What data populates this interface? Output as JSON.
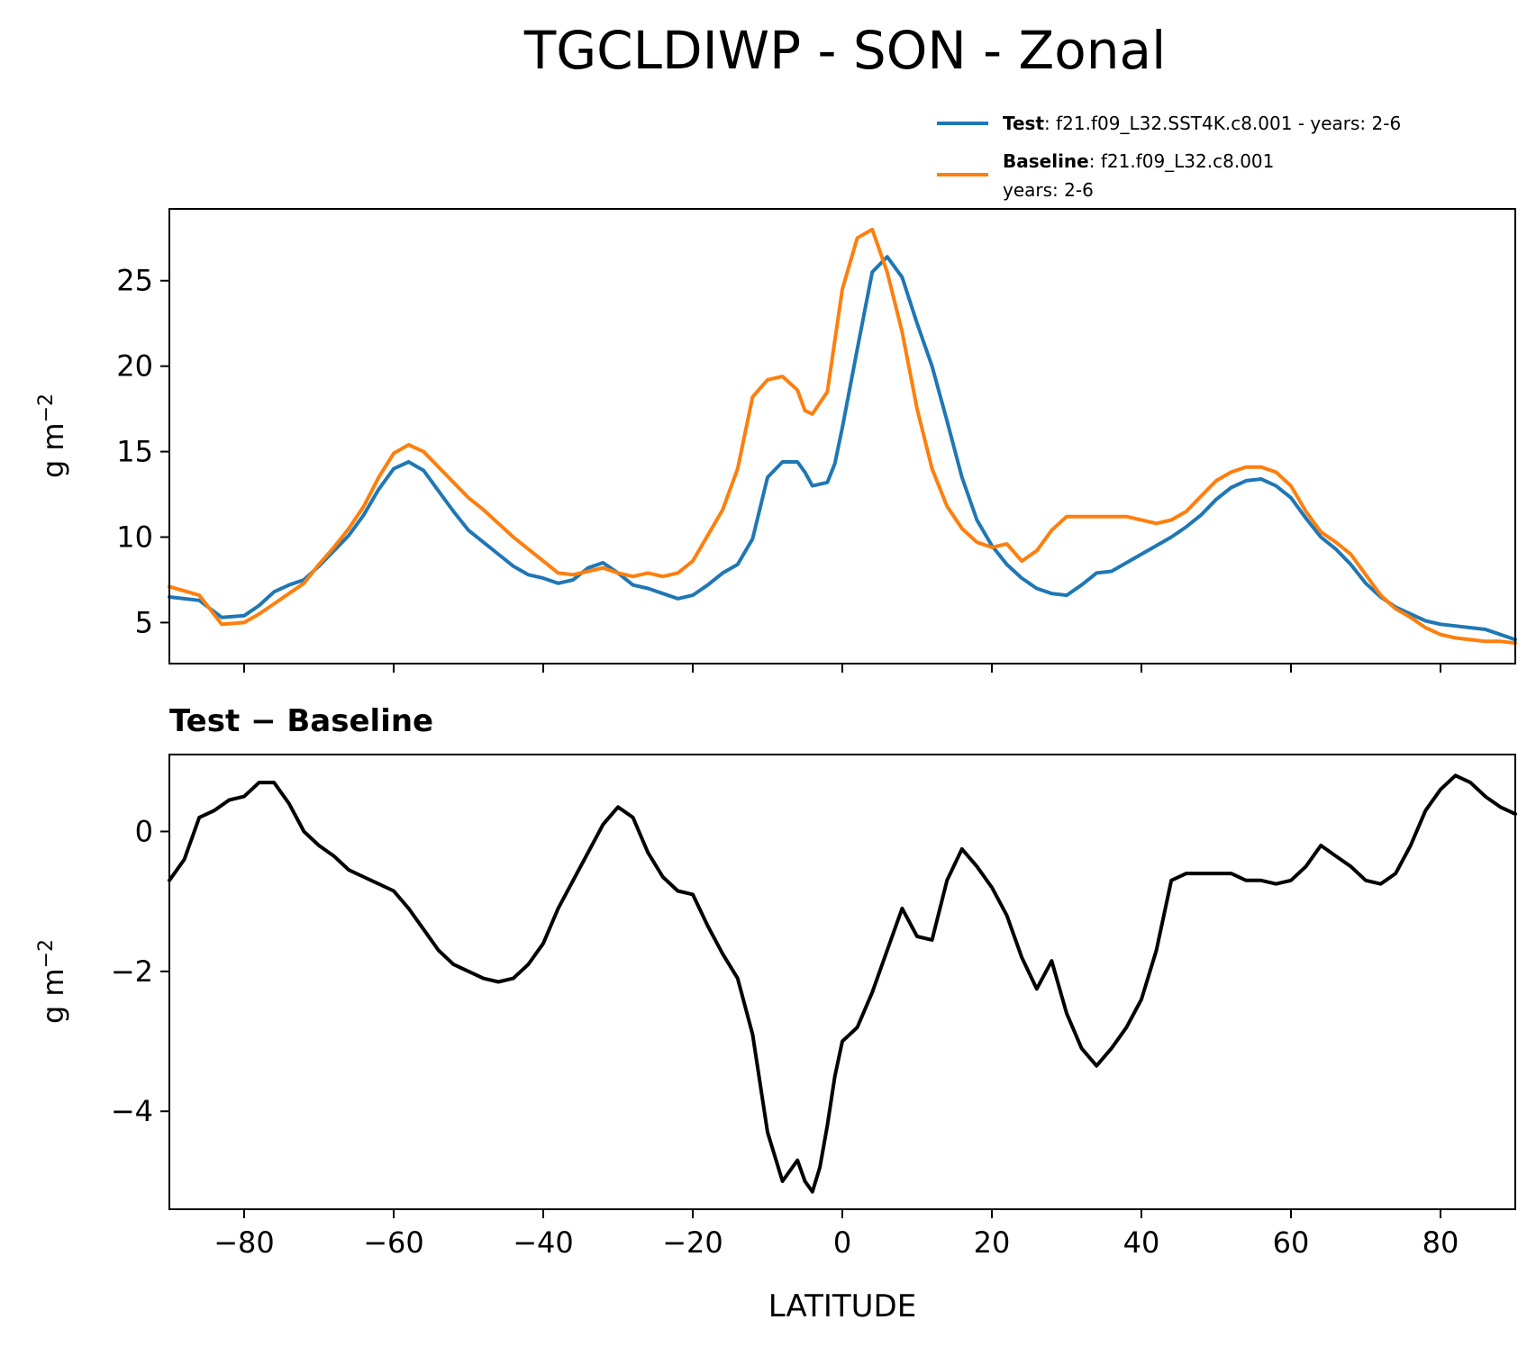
{
  "chart_data": [
    {
      "type": "line",
      "title": "TGCLDIWP - SON - Zonal",
      "xlabel": "",
      "ylabel": "g m",
      "ylabel_sup": "−2",
      "xlim": [
        -90,
        90
      ],
      "ylim": [
        2.6,
        29.2
      ],
      "yticks": [
        5,
        10,
        15,
        20,
        25
      ],
      "yticklabels": [
        "5",
        "10",
        "15",
        "20",
        "25"
      ],
      "xticks": [
        -80,
        -60,
        -40,
        -20,
        0,
        20,
        40,
        60,
        80
      ],
      "legend": {
        "position": "top-right, above plot",
        "entries": [
          {
            "key": "Test",
            "label": ": f21.f09_L32.SST4K.c8.001 - years: 2-6",
            "color": "#1f77b4"
          },
          {
            "key": "Baseline",
            "label": ": f21.f09_L32.c8.001",
            "label2": "years: 2-6",
            "color": "#ff7f0e"
          }
        ]
      },
      "series": [
        {
          "name": "Test",
          "color": "#1f77b4",
          "x": [
            -90,
            -86,
            -83,
            -80,
            -78,
            -76,
            -74,
            -72,
            -70,
            -68,
            -66,
            -64,
            -62,
            -60,
            -58,
            -56,
            -54,
            -52,
            -50,
            -48,
            -46,
            -44,
            -42,
            -40,
            -38,
            -36,
            -34,
            -32,
            -30,
            -28,
            -26,
            -24,
            -22,
            -20,
            -18,
            -16,
            -14,
            -12,
            -10,
            -8,
            -6,
            -5,
            -4,
            -2,
            -1,
            0,
            2,
            4,
            6,
            8,
            10,
            12,
            14,
            16,
            18,
            20,
            22,
            24,
            26,
            28,
            30,
            32,
            34,
            36,
            38,
            40,
            42,
            44,
            46,
            48,
            50,
            52,
            54,
            56,
            58,
            60,
            62,
            64,
            66,
            68,
            70,
            72,
            74,
            76,
            78,
            80,
            82,
            84,
            86,
            88,
            90
          ],
          "y": [
            6.5,
            6.3,
            5.3,
            5.4,
            6.0,
            6.8,
            7.2,
            7.5,
            8.3,
            9.2,
            10.1,
            11.3,
            12.8,
            14.0,
            14.4,
            13.9,
            12.7,
            11.5,
            10.4,
            9.7,
            9.0,
            8.3,
            7.8,
            7.6,
            7.3,
            7.5,
            8.2,
            8.5,
            7.9,
            7.2,
            7.0,
            6.7,
            6.4,
            6.6,
            7.2,
            7.9,
            8.4,
            9.9,
            13.5,
            14.4,
            14.4,
            13.8,
            13.0,
            13.2,
            14.3,
            16.4,
            21.0,
            25.5,
            26.4,
            25.2,
            22.5,
            20.0,
            16.8,
            13.5,
            11.0,
            9.5,
            8.4,
            7.6,
            7.0,
            6.7,
            6.6,
            7.2,
            7.9,
            8.0,
            8.5,
            9.0,
            9.5,
            10.0,
            10.6,
            11.3,
            12.2,
            12.9,
            13.3,
            13.4,
            13.0,
            12.3,
            11.1,
            10.0,
            9.3,
            8.4,
            7.3,
            6.5,
            5.9,
            5.5,
            5.1,
            4.9,
            4.8,
            4.7,
            4.6,
            4.3,
            4.0
          ]
        },
        {
          "name": "Baseline",
          "color": "#ff7f0e",
          "x": [
            -90,
            -86,
            -83,
            -80,
            -78,
            -76,
            -74,
            -72,
            -70,
            -68,
            -66,
            -64,
            -62,
            -60,
            -58,
            -56,
            -54,
            -52,
            -50,
            -48,
            -46,
            -44,
            -42,
            -40,
            -38,
            -36,
            -34,
            -32,
            -30,
            -28,
            -26,
            -24,
            -22,
            -20,
            -18,
            -16,
            -14,
            -12,
            -10,
            -8,
            -6,
            -5,
            -4,
            -2,
            -1,
            0,
            2,
            4,
            6,
            8,
            10,
            12,
            14,
            16,
            18,
            20,
            22,
            24,
            26,
            28,
            30,
            32,
            34,
            36,
            38,
            40,
            42,
            44,
            46,
            48,
            50,
            52,
            54,
            56,
            58,
            60,
            62,
            64,
            66,
            68,
            70,
            72,
            74,
            76,
            78,
            80,
            82,
            84,
            86,
            88,
            90
          ],
          "y": [
            7.1,
            6.6,
            4.9,
            5.0,
            5.5,
            6.1,
            6.7,
            7.3,
            8.4,
            9.4,
            10.5,
            11.8,
            13.5,
            14.9,
            15.4,
            15.0,
            14.1,
            13.2,
            12.3,
            11.6,
            10.8,
            10.0,
            9.3,
            8.6,
            7.9,
            7.8,
            8.0,
            8.2,
            7.9,
            7.7,
            7.9,
            7.7,
            7.9,
            8.6,
            10.1,
            11.6,
            14.0,
            18.2,
            19.2,
            19.4,
            18.6,
            17.4,
            17.2,
            18.5,
            21.5,
            24.5,
            27.5,
            28.0,
            25.5,
            22.0,
            17.5,
            14.0,
            11.8,
            10.5,
            9.7,
            9.4,
            9.6,
            8.6,
            9.2,
            10.4,
            11.2,
            11.2,
            11.2,
            11.2,
            11.2,
            11.0,
            10.8,
            11.0,
            11.5,
            12.4,
            13.3,
            13.8,
            14.1,
            14.1,
            13.8,
            13.0,
            11.5,
            10.3,
            9.7,
            9.0,
            7.8,
            6.6,
            5.8,
            5.3,
            4.7,
            4.3,
            4.1,
            4.0,
            3.9,
            3.9,
            3.8
          ]
        }
      ]
    },
    {
      "type": "line",
      "title": "Test − Baseline",
      "xlabel": "LATITUDE",
      "ylabel": "g m",
      "ylabel_sup": "−2",
      "xlim": [
        -90,
        90
      ],
      "ylim": [
        -5.4,
        1.1
      ],
      "yticks": [
        -4,
        -2,
        0
      ],
      "yticklabels": [
        "−4",
        "−2",
        "0"
      ],
      "xticks": [
        -80,
        -60,
        -40,
        -20,
        0,
        20,
        40,
        60,
        80
      ],
      "xticklabels": [
        "−80",
        "−60",
        "−40",
        "−20",
        "0",
        "20",
        "40",
        "60",
        "80"
      ],
      "series": [
        {
          "name": "Test - Baseline",
          "color": "#000000",
          "x": [
            -90,
            -88,
            -86,
            -84,
            -82,
            -80,
            -78,
            -76,
            -74,
            -72,
            -70,
            -68,
            -66,
            -64,
            -62,
            -60,
            -58,
            -56,
            -54,
            -52,
            -50,
            -48,
            -46,
            -44,
            -42,
            -40,
            -38,
            -36,
            -34,
            -32,
            -30,
            -28,
            -26,
            -24,
            -22,
            -20,
            -18,
            -16,
            -14,
            -12,
            -10,
            -8,
            -6,
            -5,
            -4,
            -3,
            -2,
            -1,
            0,
            1,
            2,
            4,
            6,
            8,
            10,
            12,
            14,
            16,
            18,
            20,
            22,
            24,
            26,
            28,
            30,
            32,
            34,
            36,
            38,
            40,
            42,
            44,
            46,
            48,
            50,
            52,
            54,
            56,
            58,
            60,
            62,
            64,
            66,
            68,
            70,
            72,
            74,
            76,
            78,
            80,
            82,
            84,
            86,
            88,
            90
          ],
          "y": [
            -0.7,
            -0.4,
            0.2,
            0.3,
            0.45,
            0.5,
            0.7,
            0.7,
            0.4,
            0.0,
            -0.2,
            -0.35,
            -0.55,
            -0.65,
            -0.75,
            -0.85,
            -1.1,
            -1.4,
            -1.7,
            -1.9,
            -2.0,
            -2.1,
            -2.15,
            -2.1,
            -1.9,
            -1.6,
            -1.1,
            -0.7,
            -0.3,
            0.1,
            0.35,
            0.2,
            -0.3,
            -0.65,
            -0.85,
            -0.9,
            -1.35,
            -1.75,
            -2.1,
            -2.9,
            -4.3,
            -5.0,
            -4.7,
            -5.0,
            -5.15,
            -4.8,
            -4.2,
            -3.5,
            -3.0,
            -2.9,
            -2.8,
            -2.3,
            -1.7,
            -1.1,
            -1.5,
            -1.55,
            -0.7,
            -0.25,
            -0.5,
            -0.8,
            -1.2,
            -1.8,
            -2.25,
            -1.85,
            -2.6,
            -3.1,
            -3.35,
            -3.1,
            -2.8,
            -2.4,
            -1.7,
            -0.7,
            -0.6,
            -0.6,
            -0.6,
            -0.6,
            -0.7,
            -0.7,
            -0.75,
            -0.7,
            -0.5,
            -0.2,
            -0.35,
            -0.5,
            -0.7,
            -0.75,
            -0.6,
            -0.2,
            0.3,
            0.6,
            0.8,
            0.7,
            0.5,
            0.35,
            0.25
          ]
        }
      ]
    }
  ]
}
